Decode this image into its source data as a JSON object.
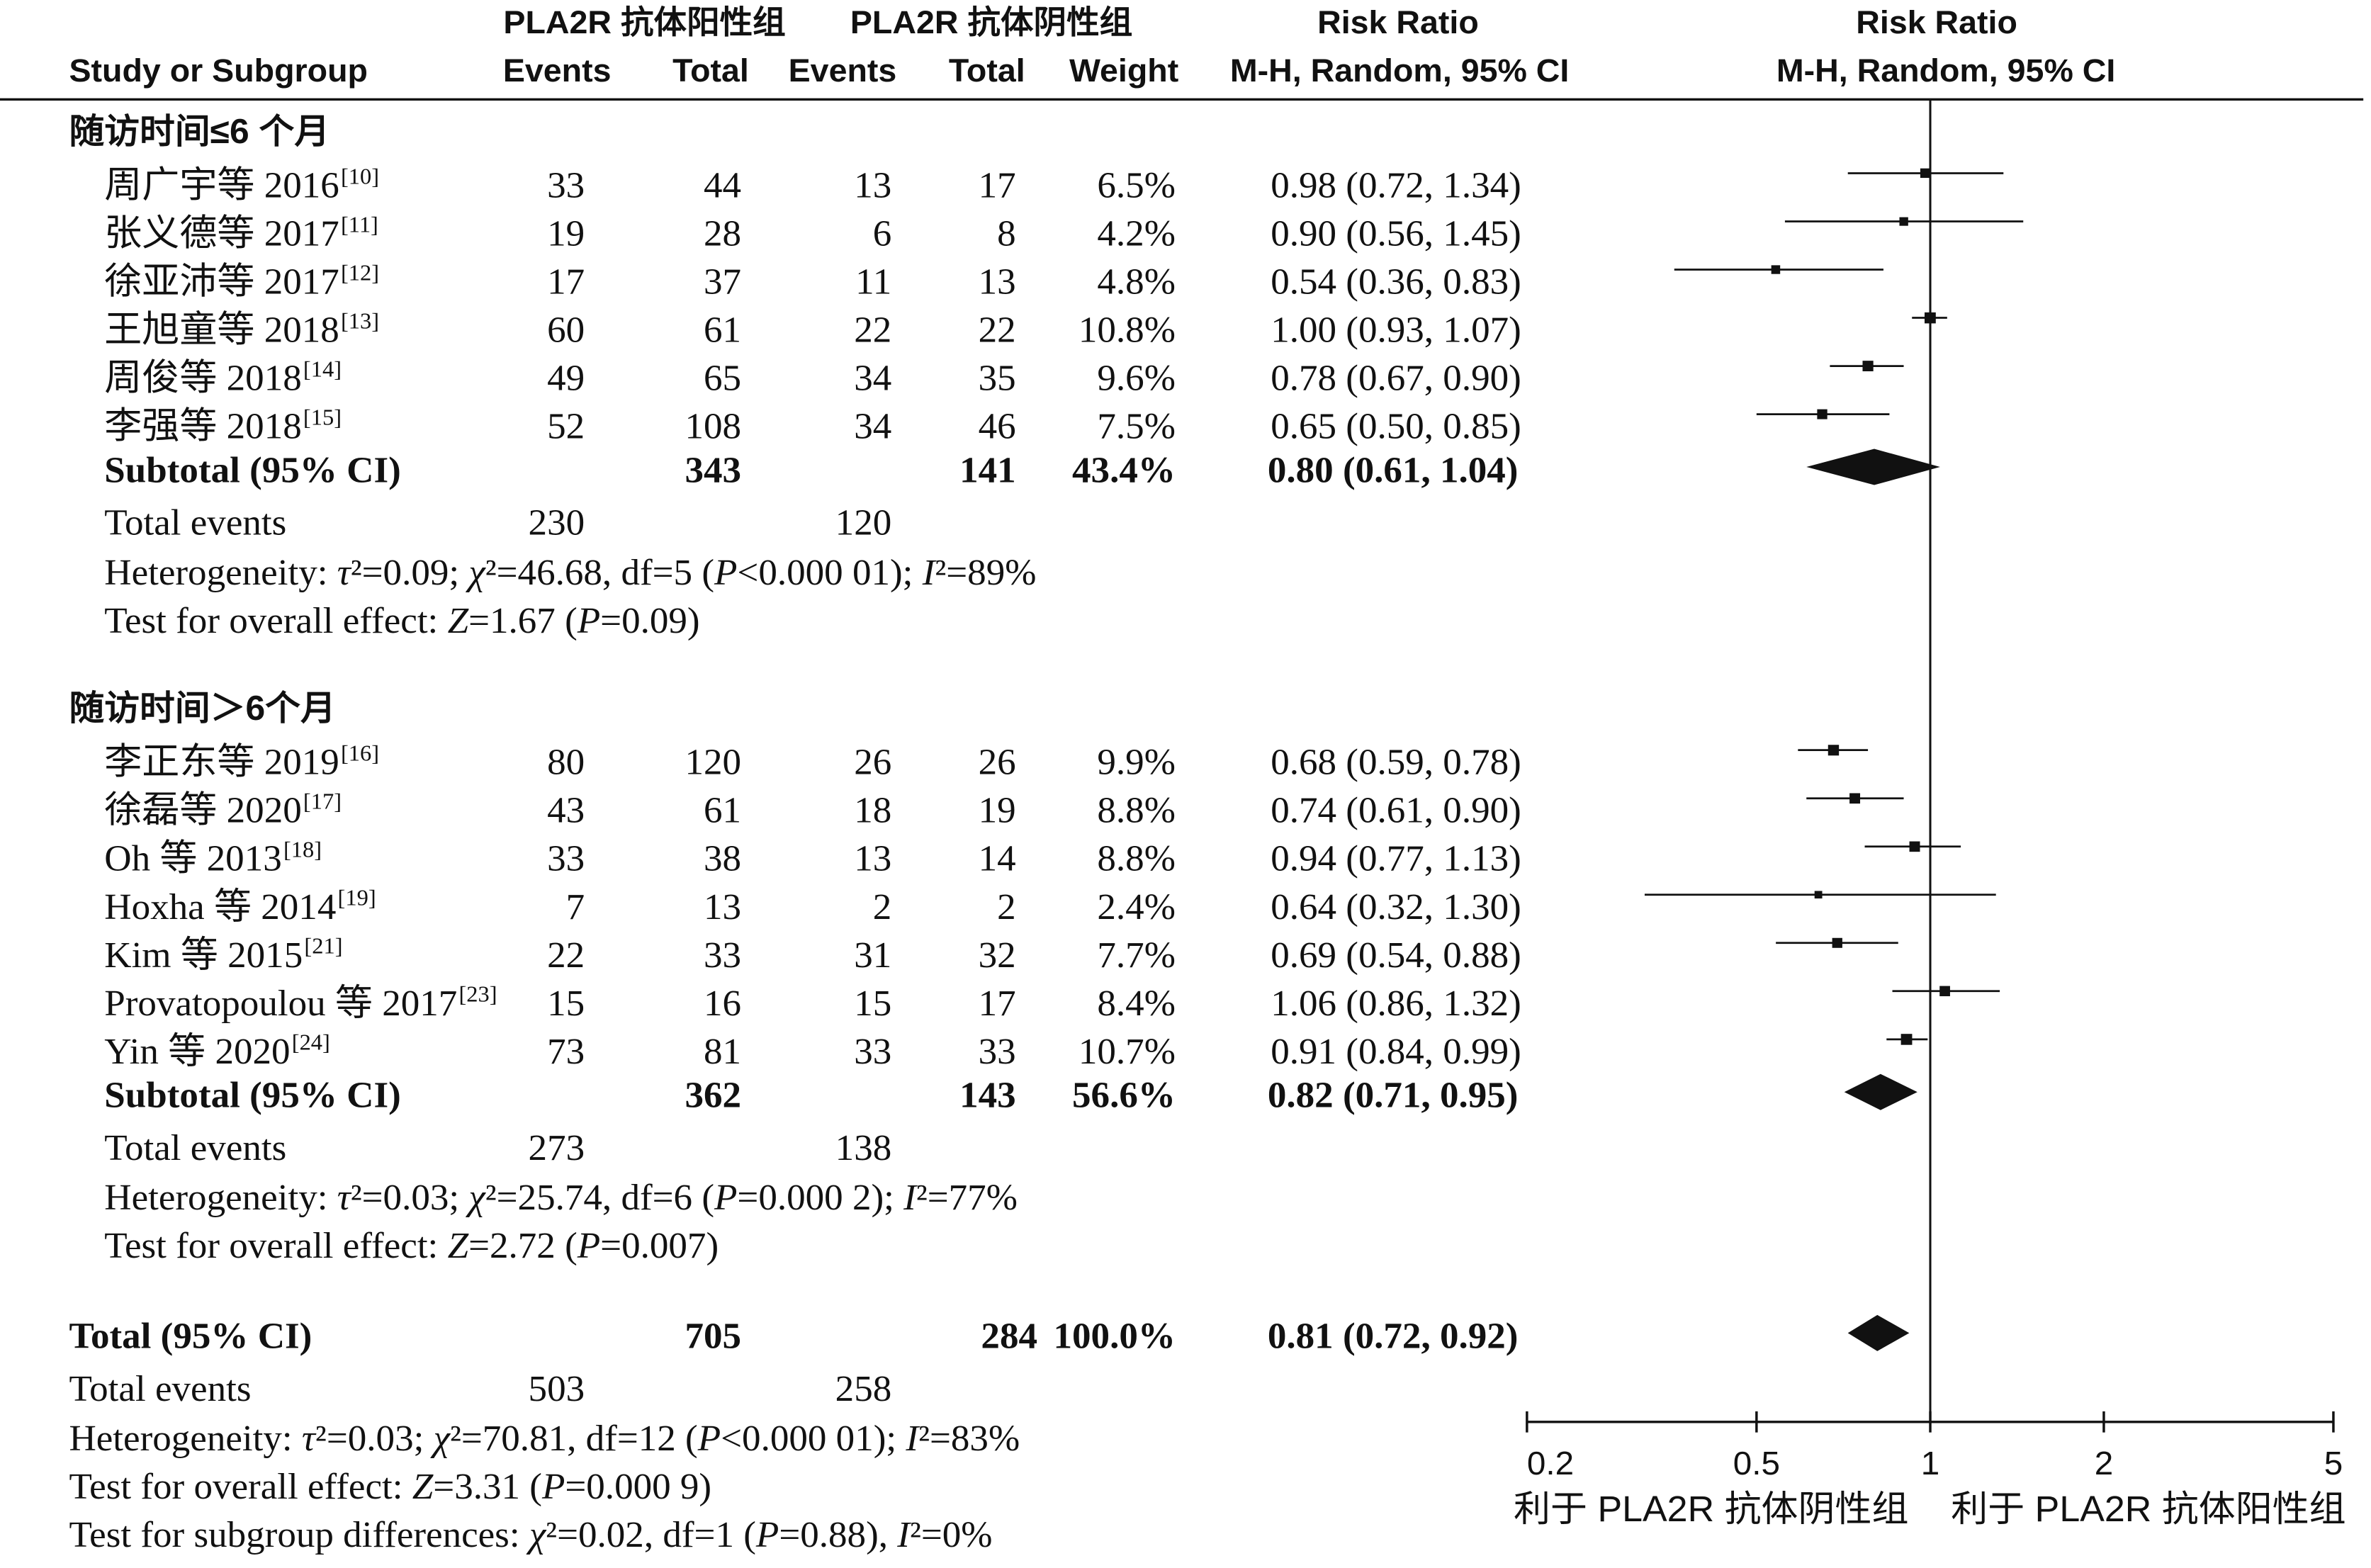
{
  "header": {
    "group1_title": "PLA2R 抗体阳性组",
    "group2_title": "PLA2R 抗体阴性组",
    "effect_title": "Risk Ratio",
    "effect_method": "M-H, Random, 95% CI",
    "study_label": "Study or Subgroup",
    "group1_events_label": "Events",
    "group1_total_label": "Total",
    "group2_events_label": "Events",
    "group2_total_label": "Total",
    "weight_label": "Weight"
  },
  "chart_data": {
    "type": "scatter",
    "title": "Risk Ratio",
    "subtitle": "M-H, Random, 95% CI",
    "xlim": [
      0.2,
      5
    ],
    "xticks": [
      0.2,
      0.5,
      1,
      2,
      5
    ],
    "xtick_labels": [
      "0.2",
      "0.5",
      "1",
      "2",
      "5"
    ],
    "xlabel_left": "利于 PLA2R 抗体阴性组",
    "xlabel_right": "利于 PLA2R 抗体阳性组",
    "reference_line": 1,
    "subgroups": [
      {
        "label": "随访时间≤6 个月",
        "studies": [
          {
            "name": "周广宇等 2016",
            "ref": "[10]",
            "events1": 33,
            "total1": 44,
            "events2": 13,
            "total2": 17,
            "weight": "6.5%",
            "rr": 0.98,
            "ci": [
              0.72,
              1.34
            ],
            "ci_text": "0.98 (0.72, 1.34)"
          },
          {
            "name": "张义德等 2017",
            "ref": "[11]",
            "events1": 19,
            "total1": 28,
            "events2": 6,
            "total2": 8,
            "weight": "4.2%",
            "rr": 0.9,
            "ci": [
              0.56,
              1.45
            ],
            "ci_text": "0.90 (0.56, 1.45)"
          },
          {
            "name": "徐亚沛等 2017",
            "ref": "[12]",
            "events1": 17,
            "total1": 37,
            "events2": 11,
            "total2": 13,
            "weight": "4.8%",
            "rr": 0.54,
            "ci": [
              0.36,
              0.83
            ],
            "ci_text": "0.54 (0.36, 0.83)"
          },
          {
            "name": "王旭童等 2018",
            "ref": "[13]",
            "events1": 60,
            "total1": 61,
            "events2": 22,
            "total2": 22,
            "weight": "10.8%",
            "rr": 1.0,
            "ci": [
              0.93,
              1.07
            ],
            "ci_text": "1.00 (0.93, 1.07)"
          },
          {
            "name": "周俊等 2018",
            "ref": "[14]",
            "events1": 49,
            "total1": 65,
            "events2": 34,
            "total2": 35,
            "weight": "9.6%",
            "rr": 0.78,
            "ci": [
              0.67,
              0.9
            ],
            "ci_text": "0.78 (0.67, 0.90)"
          },
          {
            "name": "李强等 2018",
            "ref": "[15]",
            "events1": 52,
            "total1": 108,
            "events2": 34,
            "total2": 46,
            "weight": "7.5%",
            "rr": 0.65,
            "ci": [
              0.5,
              0.85
            ],
            "ci_text": "0.65 (0.50, 0.85)"
          }
        ],
        "subtotal": {
          "label": "Subtotal (95% CI)",
          "total1": 343,
          "total2": 141,
          "weight": "43.4%",
          "rr": 0.8,
          "ci": [
            0.61,
            1.04
          ],
          "ci_text": "0.80 (0.61, 1.04)"
        },
        "total_events": {
          "label": "Total events",
          "events1": 230,
          "events2": 120
        },
        "heterogeneity": "Heterogeneity: τ²=0.09; χ²=46.68, df=5 (P<0.000 01); I²=89%",
        "overall_effect": "Test for overall effect: Z=1.67 (P=0.09)"
      },
      {
        "label": "随访时间＞6个月",
        "studies": [
          {
            "name": "李正东等 2019",
            "ref": "[16]",
            "events1": 80,
            "total1": 120,
            "events2": 26,
            "total2": 26,
            "weight": "9.9%",
            "rr": 0.68,
            "ci": [
              0.59,
              0.78
            ],
            "ci_text": "0.68 (0.59, 0.78)"
          },
          {
            "name": "徐磊等 2020",
            "ref": "[17]",
            "events1": 43,
            "total1": 61,
            "events2": 18,
            "total2": 19,
            "weight": "8.8%",
            "rr": 0.74,
            "ci": [
              0.61,
              0.9
            ],
            "ci_text": "0.74 (0.61, 0.90)"
          },
          {
            "name": "Oh 等 2013",
            "ref": "[18]",
            "events1": 33,
            "total1": 38,
            "events2": 13,
            "total2": 14,
            "weight": "8.8%",
            "rr": 0.94,
            "ci": [
              0.77,
              1.13
            ],
            "ci_text": "0.94 (0.77, 1.13)"
          },
          {
            "name": "Hoxha 等 2014",
            "ref": "[19]",
            "events1": 7,
            "total1": 13,
            "events2": 2,
            "total2": 2,
            "weight": "2.4%",
            "rr": 0.64,
            "ci": [
              0.32,
              1.3
            ],
            "ci_text": "0.64 (0.32, 1.30)"
          },
          {
            "name": "Kim 等 2015",
            "ref": "[21]",
            "events1": 22,
            "total1": 33,
            "events2": 31,
            "total2": 32,
            "weight": "7.7%",
            "rr": 0.69,
            "ci": [
              0.54,
              0.88
            ],
            "ci_text": "0.69 (0.54, 0.88)"
          },
          {
            "name": "Provatopoulou 等 2017",
            "ref": "[23]",
            "events1": 15,
            "total1": 16,
            "events2": 15,
            "total2": 17,
            "weight": "8.4%",
            "rr": 1.06,
            "ci": [
              0.86,
              1.32
            ],
            "ci_text": "1.06 (0.86, 1.32)"
          },
          {
            "name": "Yin 等 2020",
            "ref": "[24]",
            "events1": 73,
            "total1": 81,
            "events2": 33,
            "total2": 33,
            "weight": "10.7%",
            "rr": 0.91,
            "ci": [
              0.84,
              0.99
            ],
            "ci_text": "0.91 (0.84, 0.99)"
          }
        ],
        "subtotal": {
          "label": "Subtotal (95% CI)",
          "total1": 362,
          "total2": 143,
          "weight": "56.6%",
          "rr": 0.82,
          "ci": [
            0.71,
            0.95
          ],
          "ci_text": "0.82 (0.71, 0.95)"
        },
        "total_events": {
          "label": "Total events",
          "events1": 273,
          "events2": 138
        },
        "heterogeneity": "Heterogeneity: τ²=0.03; χ²=25.74, df=6 (P=0.000 2); I²=77%",
        "overall_effect": "Test for overall effect: Z=2.72 (P=0.007)"
      }
    ],
    "overall": {
      "label": "Total (95% CI)",
      "total1": 705,
      "total2": 284,
      "weight": "100.0%",
      "rr": 0.81,
      "ci": [
        0.72,
        0.92
      ],
      "ci_text": "0.81 (0.72, 0.92)",
      "total_events": {
        "label": "Total events",
        "events1": 503,
        "events2": 258
      },
      "heterogeneity": "Heterogeneity: τ²=0.03; χ²=70.81, df=12 (P<0.000 01); I²=83%",
      "overall_effect": "Test for overall effect: Z=3.31 (P=0.000 9)"
    },
    "subgroup_differences": "Test for subgroup differences: χ²=0.02, df=1 (P=0.88), I²=0%"
  }
}
